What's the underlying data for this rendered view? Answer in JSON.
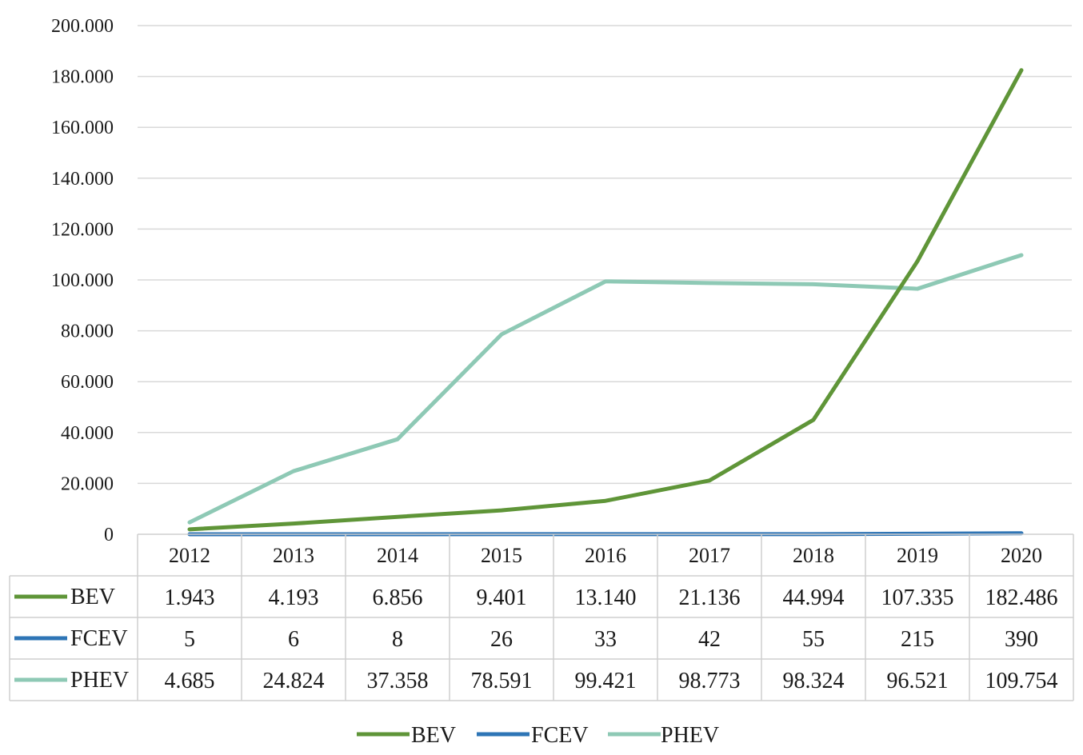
{
  "chart_data": {
    "type": "line",
    "title": "",
    "xlabel": "",
    "ylabel": "",
    "ylim": [
      0,
      200000
    ],
    "y_ticks": [
      "0",
      "20.000",
      "40.000",
      "60.000",
      "80.000",
      "100.000",
      "120.000",
      "140.000",
      "160.000",
      "180.000",
      "200.000"
    ],
    "grid": true,
    "legend": "bottom",
    "data_table": true,
    "categories": [
      "2012",
      "2013",
      "2014",
      "2015",
      "2016",
      "2017",
      "2018",
      "2019",
      "2020"
    ],
    "series": [
      {
        "name": "BEV",
        "color": "#5f9538",
        "values": [
          1943,
          4193,
          6856,
          9401,
          13140,
          21136,
          44994,
          107335,
          182486
        ],
        "labels": [
          "1.943",
          "4.193",
          "6.856",
          "9.401",
          "13.140",
          "21.136",
          "44.994",
          "107.335",
          "182.486"
        ]
      },
      {
        "name": "FCEV",
        "color": "#2e75b6",
        "values": [
          5,
          6,
          8,
          26,
          33,
          42,
          55,
          215,
          390
        ],
        "labels": [
          "5",
          "6",
          "8",
          "26",
          "33",
          "42",
          "55",
          "215",
          "390"
        ]
      },
      {
        "name": "PHEV",
        "color": "#8ec9b5",
        "values": [
          4685,
          24824,
          37358,
          78591,
          99421,
          98773,
          98324,
          96521,
          109754
        ],
        "labels": [
          "4.685",
          "24.824",
          "37.358",
          "78.591",
          "99.421",
          "98.773",
          "98.324",
          "96.521",
          "109.754"
        ]
      }
    ]
  }
}
